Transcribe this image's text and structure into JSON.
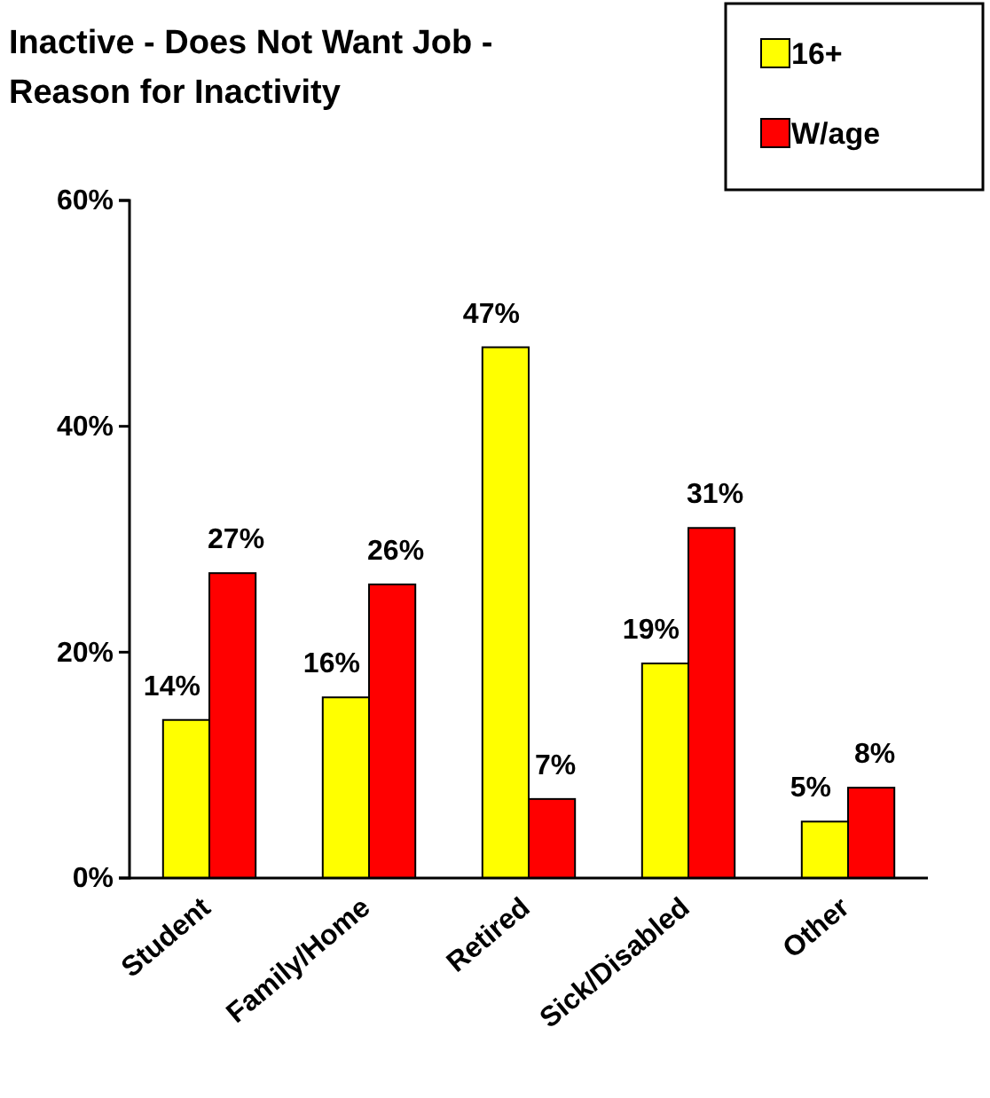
{
  "chart_data": {
    "type": "bar",
    "title": "Inactive - Does Not Want Job - Reason for Inactivity",
    "categories": [
      "Student",
      "Family/Home",
      "Retired",
      "Sick/Disabled",
      "Other"
    ],
    "series": [
      {
        "name": "16+",
        "color": "#ffff00",
        "values": [
          14,
          16,
          47,
          19,
          5
        ],
        "value_labels": [
          "14%",
          "16%",
          "47%",
          "19%",
          "5%"
        ]
      },
      {
        "name": "W/age",
        "color": "#ff0000",
        "values": [
          27,
          26,
          7,
          31,
          8
        ],
        "value_labels": [
          "27%",
          "26%",
          "7%",
          "31%",
          "8%"
        ]
      }
    ],
    "ylim": [
      0,
      60
    ],
    "yticks": [
      {
        "value": 0,
        "label": "0%"
      },
      {
        "value": 20,
        "label": "20%"
      },
      {
        "value": 40,
        "label": "40%"
      },
      {
        "value": 60,
        "label": "60%"
      }
    ],
    "grid": false,
    "legend": "top right"
  }
}
